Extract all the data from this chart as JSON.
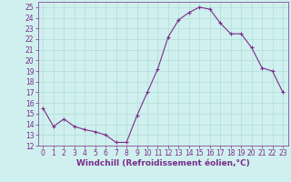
{
  "x": [
    0,
    1,
    2,
    3,
    4,
    5,
    6,
    7,
    8,
    9,
    10,
    11,
    12,
    13,
    14,
    15,
    16,
    17,
    18,
    19,
    20,
    21,
    22,
    23
  ],
  "y": [
    15.5,
    13.8,
    14.5,
    13.8,
    13.5,
    13.3,
    13.0,
    12.3,
    12.3,
    14.8,
    17.0,
    19.2,
    22.2,
    23.8,
    24.5,
    25.0,
    24.8,
    23.5,
    22.5,
    22.5,
    21.2,
    19.3,
    19.0,
    17.0
  ],
  "line_color": "#7b2d8b",
  "marker": "+",
  "marker_size": 3,
  "marker_linewidth": 0.8,
  "bg_color": "#cff0ee",
  "grid_color": "#b0dcd9",
  "xlabel": "Windchill (Refroidissement éolien,°C)",
  "xlabel_color": "#7b2d8b",
  "ylim": [
    12,
    25.5
  ],
  "yticks": [
    12,
    13,
    14,
    15,
    16,
    17,
    18,
    19,
    20,
    21,
    22,
    23,
    24,
    25
  ],
  "xticks": [
    0,
    1,
    2,
    3,
    4,
    5,
    6,
    7,
    8,
    9,
    10,
    11,
    12,
    13,
    14,
    15,
    16,
    17,
    18,
    19,
    20,
    21,
    22,
    23
  ],
  "tick_color": "#7b2d8b",
  "tick_fontsize": 5.5,
  "xlabel_fontsize": 6.5,
  "linewidth": 0.8
}
